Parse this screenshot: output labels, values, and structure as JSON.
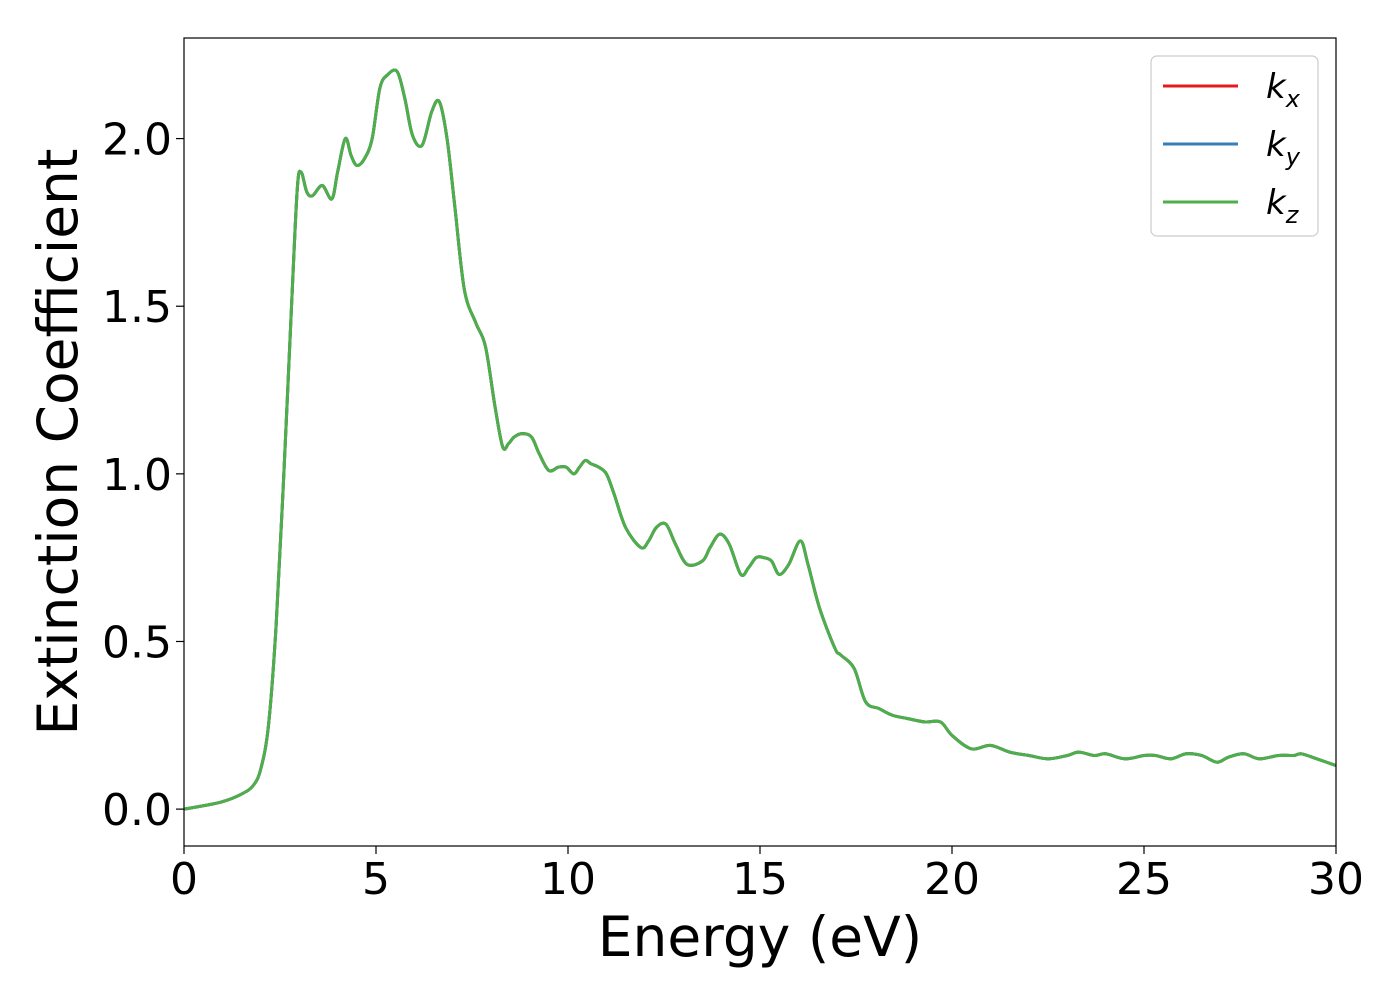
{
  "chart_data": {
    "type": "line",
    "title": "",
    "xlabel": "Energy (eV)",
    "ylabel": "Extinction Coefficient",
    "xlim": [
      0,
      30
    ],
    "ylim": [
      -0.11,
      2.3
    ],
    "x_ticks": [
      0,
      5,
      10,
      15,
      20,
      25,
      30
    ],
    "x_tick_labels": [
      "0",
      "5",
      "10",
      "15",
      "20",
      "25",
      "30"
    ],
    "y_ticks": [
      0.0,
      0.5,
      1.0,
      1.5,
      2.0
    ],
    "y_tick_labels": [
      "0.0",
      "0.5",
      "1.0",
      "1.5",
      "2.0"
    ],
    "grid": false,
    "legend_position": "top-right",
    "x": [
      0,
      0.5,
      1.0,
      1.5,
      1.8,
      2.0,
      2.2,
      2.4,
      2.6,
      2.8,
      2.95,
      3.05,
      3.2,
      3.35,
      3.6,
      3.85,
      4.0,
      4.2,
      4.35,
      4.5,
      4.7,
      4.9,
      5.1,
      5.3,
      5.55,
      5.75,
      5.95,
      6.2,
      6.45,
      6.65,
      6.85,
      7.05,
      7.3,
      7.6,
      7.85,
      8.1,
      8.3,
      8.45,
      8.6,
      8.8,
      9.05,
      9.25,
      9.5,
      9.75,
      9.95,
      10.15,
      10.3,
      10.45,
      10.6,
      10.8,
      11.0,
      11.2,
      11.5,
      11.9,
      12.1,
      12.3,
      12.55,
      12.8,
      13.1,
      13.5,
      13.7,
      13.95,
      14.2,
      14.5,
      14.7,
      14.9,
      15.1,
      15.3,
      15.5,
      15.75,
      16.05,
      16.25,
      16.55,
      16.95,
      17.1,
      17.45,
      17.75,
      18.1,
      18.45,
      18.85,
      19.3,
      19.7,
      20.0,
      20.5,
      21.0,
      21.5,
      22.0,
      22.5,
      23.0,
      23.3,
      23.7,
      24.0,
      24.5,
      25.0,
      25.3,
      25.7,
      26.1,
      26.5,
      26.9,
      27.2,
      27.6,
      28.0,
      28.5,
      28.9,
      29.1,
      29.5,
      30.0
    ],
    "series": [
      {
        "name": "k_x",
        "color": "#e41a1c",
        "y": [
          0.0,
          0.01,
          0.022,
          0.045,
          0.07,
          0.12,
          0.25,
          0.55,
          1.0,
          1.5,
          1.85,
          1.9,
          1.84,
          1.83,
          1.86,
          1.82,
          1.9,
          2.0,
          1.95,
          1.92,
          1.94,
          2.0,
          2.15,
          2.19,
          2.2,
          2.12,
          2.01,
          1.98,
          2.08,
          2.11,
          2.0,
          1.8,
          1.55,
          1.45,
          1.38,
          1.2,
          1.08,
          1.09,
          1.11,
          1.12,
          1.11,
          1.06,
          1.01,
          1.02,
          1.02,
          1.0,
          1.02,
          1.04,
          1.03,
          1.02,
          1.0,
          0.94,
          0.84,
          0.78,
          0.8,
          0.84,
          0.85,
          0.79,
          0.73,
          0.74,
          0.78,
          0.82,
          0.79,
          0.7,
          0.72,
          0.75,
          0.75,
          0.74,
          0.7,
          0.73,
          0.8,
          0.73,
          0.6,
          0.48,
          0.46,
          0.42,
          0.32,
          0.3,
          0.28,
          0.27,
          0.26,
          0.26,
          0.22,
          0.18,
          0.19,
          0.17,
          0.16,
          0.15,
          0.16,
          0.17,
          0.16,
          0.165,
          0.15,
          0.16,
          0.16,
          0.15,
          0.165,
          0.16,
          0.14,
          0.155,
          0.165,
          0.15,
          0.16,
          0.16,
          0.165,
          0.15,
          0.13
        ]
      },
      {
        "name": "k_y",
        "color": "#377eb8",
        "y": [
          0.0,
          0.01,
          0.022,
          0.045,
          0.07,
          0.12,
          0.25,
          0.55,
          1.0,
          1.5,
          1.85,
          1.9,
          1.84,
          1.83,
          1.86,
          1.82,
          1.9,
          2.0,
          1.95,
          1.92,
          1.94,
          2.0,
          2.15,
          2.19,
          2.2,
          2.12,
          2.01,
          1.98,
          2.08,
          2.11,
          2.0,
          1.8,
          1.55,
          1.45,
          1.38,
          1.2,
          1.08,
          1.09,
          1.11,
          1.12,
          1.11,
          1.06,
          1.01,
          1.02,
          1.02,
          1.0,
          1.02,
          1.04,
          1.03,
          1.02,
          1.0,
          0.94,
          0.84,
          0.78,
          0.8,
          0.84,
          0.85,
          0.79,
          0.73,
          0.74,
          0.78,
          0.82,
          0.79,
          0.7,
          0.72,
          0.75,
          0.75,
          0.74,
          0.7,
          0.73,
          0.8,
          0.73,
          0.6,
          0.48,
          0.46,
          0.42,
          0.32,
          0.3,
          0.28,
          0.27,
          0.26,
          0.26,
          0.22,
          0.18,
          0.19,
          0.17,
          0.16,
          0.15,
          0.16,
          0.17,
          0.16,
          0.165,
          0.15,
          0.16,
          0.16,
          0.15,
          0.165,
          0.16,
          0.14,
          0.155,
          0.165,
          0.15,
          0.16,
          0.16,
          0.165,
          0.15,
          0.13
        ]
      },
      {
        "name": "k_z",
        "color": "#4daf4a",
        "y": [
          0.0,
          0.01,
          0.022,
          0.045,
          0.07,
          0.12,
          0.25,
          0.55,
          1.0,
          1.5,
          1.85,
          1.9,
          1.84,
          1.83,
          1.86,
          1.82,
          1.9,
          2.0,
          1.95,
          1.92,
          1.94,
          2.0,
          2.15,
          2.19,
          2.2,
          2.12,
          2.01,
          1.98,
          2.08,
          2.11,
          2.0,
          1.8,
          1.55,
          1.45,
          1.38,
          1.2,
          1.08,
          1.09,
          1.11,
          1.12,
          1.11,
          1.06,
          1.01,
          1.02,
          1.02,
          1.0,
          1.02,
          1.04,
          1.03,
          1.02,
          1.0,
          0.94,
          0.84,
          0.78,
          0.8,
          0.84,
          0.85,
          0.79,
          0.73,
          0.74,
          0.78,
          0.82,
          0.79,
          0.7,
          0.72,
          0.75,
          0.75,
          0.74,
          0.7,
          0.73,
          0.8,
          0.73,
          0.6,
          0.48,
          0.46,
          0.42,
          0.32,
          0.3,
          0.28,
          0.27,
          0.26,
          0.26,
          0.22,
          0.18,
          0.19,
          0.17,
          0.16,
          0.15,
          0.16,
          0.17,
          0.16,
          0.165,
          0.15,
          0.16,
          0.16,
          0.15,
          0.165,
          0.16,
          0.14,
          0.155,
          0.165,
          0.15,
          0.16,
          0.16,
          0.165,
          0.15,
          0.13
        ]
      }
    ],
    "legend": [
      {
        "base": "k",
        "sub": "x",
        "color": "#e41a1c"
      },
      {
        "base": "k",
        "sub": "y",
        "color": "#377eb8"
      },
      {
        "base": "k",
        "sub": "z",
        "color": "#4daf4a"
      }
    ]
  }
}
